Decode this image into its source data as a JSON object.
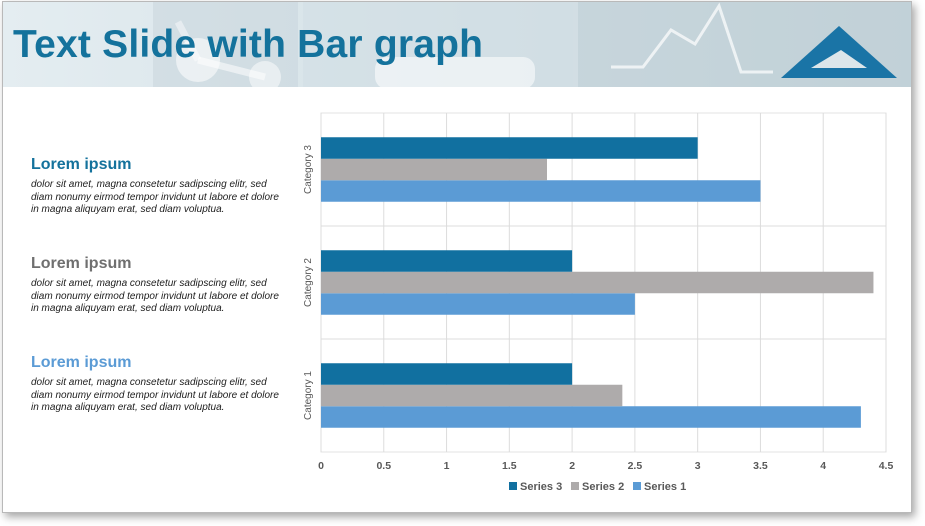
{
  "slide": {
    "title": "Text Slide with Bar graph"
  },
  "sections": [
    {
      "heading": "Lorem ipsum",
      "color": "#14729c",
      "body": "dolor sit amet, magna consetetur sadipscing elitr, sed diam nonumy eirmod tempor invidunt ut labore et dolore in magna aliquyam erat, sed diam voluptua."
    },
    {
      "heading": "Lorem ipsum",
      "color": "#6f6f6f",
      "body": "dolor sit amet, magna consetetur sadipscing elitr, sed diam nonumy eirmod tempor invidunt ut labore et dolore in magna aliquyam erat, sed diam voluptua."
    },
    {
      "heading": "Lorem ipsum",
      "color": "#5b9bd5",
      "body": "dolor sit amet, magna consetetur sadipscing elitr, sed diam nonumy eirmod tempor invidunt ut labore et dolore in magna aliquyam erat, sed diam voluptua."
    }
  ],
  "logo": {
    "icon": "triangle-logo-icon",
    "color": "#1a74a6"
  },
  "chart_data": {
    "type": "bar",
    "orientation": "horizontal",
    "categories": [
      "Category 1",
      "Category 2",
      "Category 3"
    ],
    "series": [
      {
        "name": "Series 1",
        "color": "#5b9bd5",
        "values": [
          4.3,
          2.5,
          3.5
        ]
      },
      {
        "name": "Series 2",
        "color": "#aeabab",
        "values": [
          2.4,
          4.4,
          1.8
        ]
      },
      {
        "name": "Series 3",
        "color": "#1170a0",
        "values": [
          2,
          2,
          3
        ]
      }
    ],
    "xlim": [
      0,
      4.5
    ],
    "xticks": [
      "0",
      "0.5",
      "1",
      "1.5",
      "2",
      "2.5",
      "3",
      "3.5",
      "4",
      "4.5"
    ],
    "grid": true,
    "legend": {
      "position": "bottom",
      "order": [
        "Series 3",
        "Series 2",
        "Series 1"
      ]
    }
  }
}
